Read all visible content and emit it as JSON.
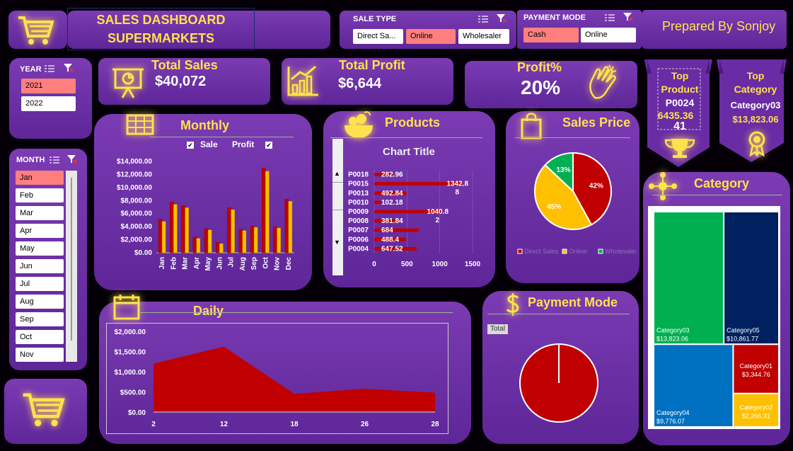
{
  "title": {
    "line1": "SALES DASHBOARD",
    "line2": "SUPERMARKETS"
  },
  "prepared_by": "Prepared By Sonjoy",
  "sale_type": {
    "header": "SALE TYPE",
    "options": [
      "Direct Sa...",
      "Online",
      "Wholesaler"
    ],
    "selected": "Online"
  },
  "payment_mode_filter": {
    "header": "PAYMENT MODE",
    "options": [
      "Cash",
      "Online"
    ],
    "selected": "Cash"
  },
  "year_slicer": {
    "header": "YEAR",
    "options": [
      "2021",
      "2022"
    ],
    "selected": "2021"
  },
  "month_slicer": {
    "header": "MONTH",
    "options": [
      "Jan",
      "Feb",
      "Mar",
      "Apr",
      "May",
      "Jun",
      "Jul",
      "Aug",
      "Sep",
      "Oct",
      "Nov"
    ],
    "selected": "Jan"
  },
  "kpis": {
    "total_sales": {
      "label": "Total Sales",
      "value": "$40,072"
    },
    "total_profit": {
      "label": "Total Profit",
      "value": "$6,644"
    },
    "profit_pct": {
      "label": "Profit%",
      "value": "20%"
    }
  },
  "top_product": {
    "label_line1": "Top",
    "label_line2": "Product",
    "name": "P0024",
    "value": "6435.36",
    "count": "41"
  },
  "top_category": {
    "label_line1": "Top",
    "label_line2": "Category",
    "name": "Category03",
    "value": "$13,823.06"
  },
  "colors": {
    "sale_bar": "#c00000",
    "profit_bar": "#ffc000",
    "green": "#00b050",
    "navy": "#002060",
    "blue": "#0070c0",
    "red": "#c00000",
    "amber": "#ffc000",
    "accent": "#ffe14d"
  },
  "monthly": {
    "title": "Monthly",
    "legend": {
      "sale": "Sale",
      "profit": "Profit"
    },
    "chart_data": {
      "type": "bar",
      "categories": [
        "Jan",
        "Feb",
        "Mar",
        "Apr",
        "May",
        "Jun",
        "Jul",
        "Aug",
        "Sep",
        "Oct",
        "Nov",
        "Dec"
      ],
      "series": [
        {
          "name": "Sale",
          "values": [
            5100,
            7800,
            7200,
            2400,
            3700,
            1600,
            6900,
            3600,
            4100,
            13000,
            4000,
            8200
          ]
        },
        {
          "name": "Profit",
          "values": [
            4800,
            7400,
            6900,
            2200,
            3500,
            1400,
            6600,
            3400,
            3900,
            12500,
            3800,
            7900
          ]
        }
      ],
      "yticks": [
        "$0.00",
        "$2,000.00",
        "$4,000.00",
        "$6,000.00",
        "$8,000.00",
        "$10,000.00",
        "$12,000.00",
        "$14,000.00"
      ],
      "ylim": [
        0,
        14000
      ]
    }
  },
  "products": {
    "title": "Products",
    "chart_title": "Chart Title",
    "chart_data": {
      "type": "bar",
      "categories": [
        "P0018",
        "P0015",
        "P0013",
        "P0010",
        "P0009",
        "P0008",
        "P0007",
        "P0006",
        "P0004"
      ],
      "values": [
        282.96,
        1342.88,
        492.84,
        102.18,
        1040.82,
        381.84,
        684,
        488.4,
        647.52
      ],
      "labels": [
        "282.96",
        "1342.8\n8",
        "492.84",
        "102.18",
        "1040.8\n2",
        "381.84",
        "684",
        "488.4",
        "647.52"
      ],
      "xticks": [
        "0",
        "500",
        "1000",
        "1500"
      ],
      "xlim": [
        0,
        1500
      ]
    }
  },
  "sales_price": {
    "title": "Sales Price",
    "chart_data": {
      "type": "pie",
      "slices": [
        {
          "name": "Direct Sales",
          "value": 42,
          "label": "42%"
        },
        {
          "name": "Online",
          "value": 45,
          "label": "45%"
        },
        {
          "name": "Wholesaler",
          "value": 13,
          "label": "13%"
        }
      ],
      "legend": [
        "Direct Sales",
        "Online",
        "Wholesaler"
      ]
    }
  },
  "category": {
    "title": "Category",
    "chart_data": {
      "type": "treemap",
      "items": [
        {
          "name": "Category03",
          "value": 13823.06,
          "label": "$13,823.06"
        },
        {
          "name": "Category05",
          "value": 10861.77,
          "label": "$10,861.77"
        },
        {
          "name": "Category04",
          "value": 9776.07,
          "label": "$9,776.07"
        },
        {
          "name": "Category01",
          "value": 3344.76,
          "label": "$3,344.76"
        },
        {
          "name": "Category02",
          "value": 2266.31,
          "label": "$2,266.31"
        }
      ]
    }
  },
  "daily": {
    "title": "Daily",
    "chart_data": {
      "type": "area",
      "x": [
        "2",
        "12",
        "18",
        "26",
        "28"
      ],
      "values": [
        1200,
        1620,
        450,
        580,
        480
      ],
      "yticks": [
        "$0.00",
        "$500.00",
        "$1,000.00",
        "$1,500.00",
        "$2,000.00"
      ],
      "ylim": [
        0,
        2000
      ]
    }
  },
  "payment_mode": {
    "title": "Payment Mode",
    "filter_label": "Total",
    "chart_data": {
      "type": "pie",
      "slices": [
        {
          "name": "Total",
          "value": 100
        }
      ]
    }
  }
}
